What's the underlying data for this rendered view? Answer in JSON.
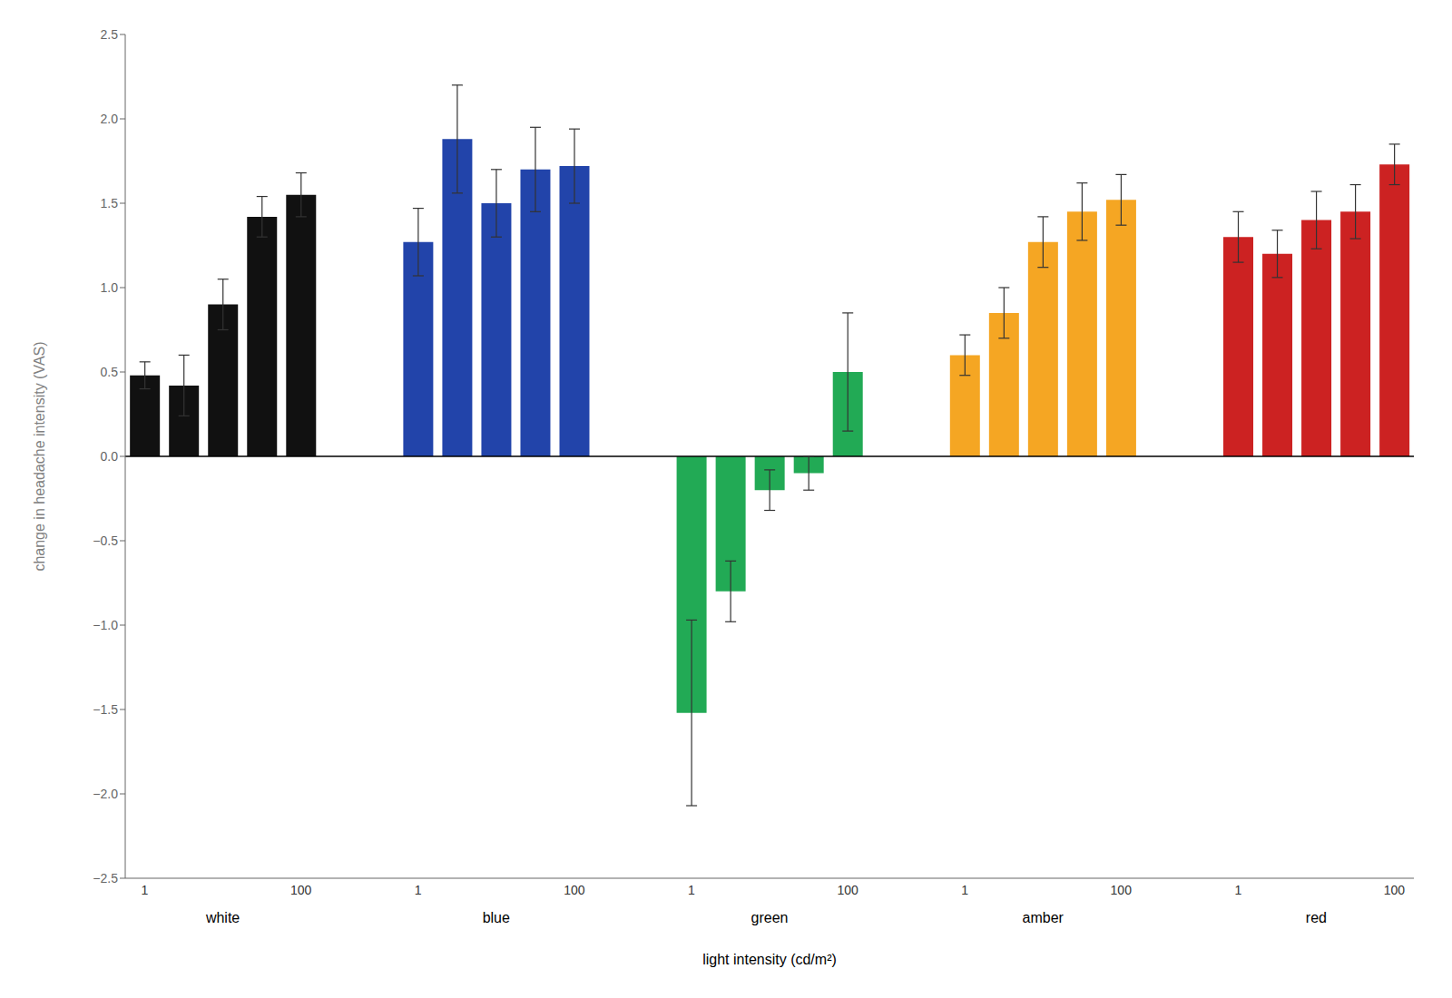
{
  "chart_data": {
    "type": "bar",
    "categories": [
      "1",
      null,
      null,
      null,
      "100",
      "1",
      null,
      null,
      null,
      "100",
      "1",
      null,
      null,
      null,
      "100",
      "1",
      null,
      null,
      null,
      "100",
      "1",
      null,
      null,
      null,
      "100"
    ],
    "groups": [
      "white",
      "blue",
      "green",
      "amber",
      "red"
    ],
    "values": [
      0.48,
      0.42,
      0.9,
      1.42,
      1.55,
      1.27,
      1.88,
      1.5,
      1.7,
      1.72,
      -1.52,
      -0.8,
      -0.2,
      -0.1,
      0.5,
      0.6,
      0.85,
      1.27,
      1.45,
      1.52,
      1.3,
      1.2,
      1.4,
      1.45,
      1.73
    ],
    "errors": [
      0.08,
      0.18,
      0.15,
      0.12,
      0.13,
      0.2,
      0.32,
      0.2,
      0.25,
      0.22,
      0.55,
      0.18,
      0.12,
      0.1,
      0.35,
      0.12,
      0.15,
      0.15,
      0.17,
      0.15,
      0.15,
      0.14,
      0.17,
      0.16,
      0.12
    ],
    "colors": [
      "#111111",
      "#111111",
      "#111111",
      "#111111",
      "#111111",
      "#2244aa",
      "#2244aa",
      "#2244aa",
      "#2244aa",
      "#2244aa",
      "#22aa55",
      "#22aa55",
      "#22aa55",
      "#22aa55",
      "#22aa55",
      "#f5a623",
      "#f5a623",
      "#f5a623",
      "#f5a623",
      "#f5a623",
      "#cc2222",
      "#cc2222",
      "#cc2222",
      "#cc2222",
      "#cc2222"
    ],
    "xlabel": "light intensity (cd/m²)",
    "ylabel": "change in headache intensity (VAS)",
    "ylim": [
      -2.5,
      2.5
    ],
    "yticks": [
      {
        "value": -2.5,
        "label": "−2.5"
      },
      {
        "value": -2.0,
        "label": "−2.0"
      },
      {
        "value": -1.5,
        "label": "−1.5"
      },
      {
        "value": -1.0,
        "label": "−1.0"
      },
      {
        "value": -0.5,
        "label": "−0.5"
      },
      {
        "value": 0.0,
        "label": "0.0"
      },
      0.5,
      {
        "value": 1.0,
        "label": "1.0"
      },
      1.5,
      {
        "value": 2.0,
        "label": "2.0"
      },
      2.5
    ]
  }
}
